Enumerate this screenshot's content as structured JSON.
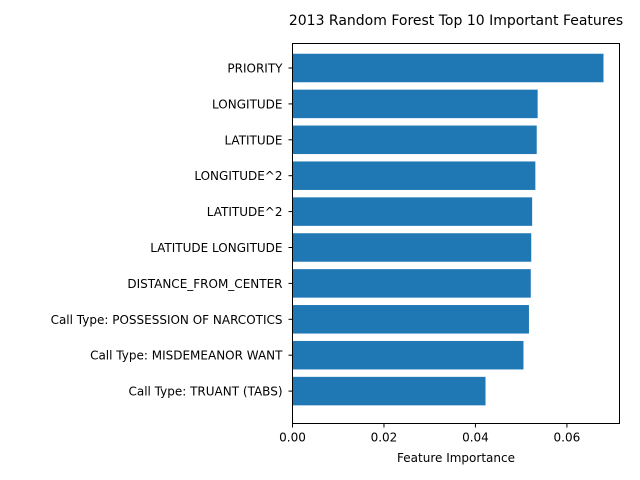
{
  "chart_data": {
    "type": "bar",
    "orientation": "horizontal",
    "title": "2013 Random Forest Top 10 Important Features",
    "xlabel": "Feature Importance",
    "ylabel": "",
    "categories": [
      "PRIORITY",
      "LONGITUDE",
      "LATITUDE",
      "LONGITUDE^2",
      "LATITUDE^2",
      "LATITUDE LONGITUDE",
      "DISTANCE_FROM_CENTER",
      "Call Type: POSSESSION OF NARCOTICS",
      "Call Type: MISDEMEANOR WANT",
      "Call Type: TRUANT (TABS)"
    ],
    "values": [
      0.068,
      0.0536,
      0.0534,
      0.0531,
      0.0524,
      0.0522,
      0.0521,
      0.0517,
      0.0505,
      0.0422
    ],
    "xlim": [
      0,
      0.0715
    ],
    "xticks": [
      0.0,
      0.02,
      0.04,
      0.06
    ],
    "xtick_labels": [
      "0.00",
      "0.02",
      "0.04",
      "0.06"
    ],
    "bar_color": "#1f77b4",
    "grid": false,
    "legend": "none"
  }
}
